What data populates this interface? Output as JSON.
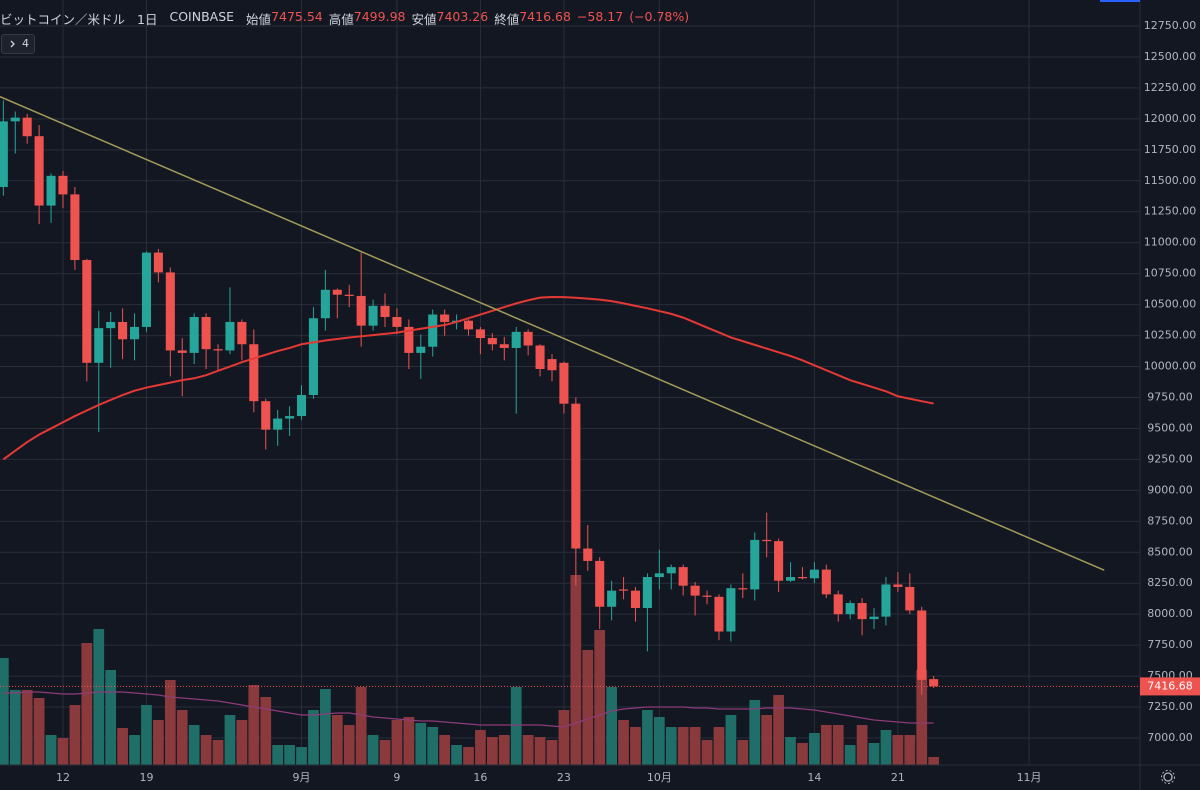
{
  "header": {
    "symbol": "ビットコイン／米ドル",
    "interval": "1日",
    "exchange": "COINBASE",
    "open_label": "始値",
    "open": "7475.54",
    "high_label": "高値",
    "high": "7499.98",
    "low_label": "安値",
    "low": "7403.26",
    "close_label": "終値",
    "close": "7416.68",
    "change": "−58.17",
    "change_percent": "(−0.78%)",
    "indicator_badge": "4"
  },
  "chart_data": {
    "type": "candlestick",
    "up_color": "#26a69a",
    "down_color": "#ef5350",
    "volume_up_color": "#1f6f68",
    "volume_down_color": "#8a3a3d",
    "ma_color": "#e53935",
    "volume_ma_color": "#8e3b7a",
    "trend_color": "#a39d58",
    "grid": true,
    "xlim": [
      -0.28,
      95.3
    ],
    "xticks": [
      {
        "value": 5,
        "label": "12"
      },
      {
        "value": 12,
        "label": "19"
      },
      {
        "value": 25,
        "label": "9月"
      },
      {
        "value": 33,
        "label": "9"
      },
      {
        "value": 40,
        "label": "16"
      },
      {
        "value": 47,
        "label": "23"
      },
      {
        "value": 55,
        "label": "10月"
      },
      {
        "value": 68,
        "label": "14"
      },
      {
        "value": 75,
        "label": "21"
      },
      {
        "value": 86,
        "label": "11月"
      }
    ],
    "ylim": [
      6782,
      12960
    ],
    "yticks": [
      {
        "value": 12750,
        "label": "12750.00"
      },
      {
        "value": 12500,
        "label": "12500.00"
      },
      {
        "value": 12250,
        "label": "12250.00"
      },
      {
        "value": 12000,
        "label": "12000.00"
      },
      {
        "value": 11750,
        "label": "11750.00"
      },
      {
        "value": 11500,
        "label": "11500.00"
      },
      {
        "value": 11250,
        "label": "11250.00"
      },
      {
        "value": 11000,
        "label": "11000.00"
      },
      {
        "value": 10750,
        "label": "10750.00"
      },
      {
        "value": 10500,
        "label": "10500.00"
      },
      {
        "value": 10250,
        "label": "10250.00"
      },
      {
        "value": 10000,
        "label": "10000.00"
      },
      {
        "value": 9750,
        "label": "9750.00"
      },
      {
        "value": 9500,
        "label": "9500.00"
      },
      {
        "value": 9250,
        "label": "9250.00"
      },
      {
        "value": 9000,
        "label": "9000.00"
      },
      {
        "value": 8750,
        "label": "8750.00"
      },
      {
        "value": 8500,
        "label": "8500.00"
      },
      {
        "value": 8250,
        "label": "8250.00"
      },
      {
        "value": 8000,
        "label": "8000.00"
      },
      {
        "value": 7750,
        "label": "7750.00"
      },
      {
        "value": 7500,
        "label": "7500.00"
      },
      {
        "value": 7250,
        "label": "7250.00"
      },
      {
        "value": 7000,
        "label": "7000.00"
      }
    ],
    "volume_ylim": [
      0,
      400
    ],
    "last_price": 7416.68,
    "open": [
      11450,
      11980,
      12010,
      11860,
      11300,
      11540,
      11390,
      10860,
      10030,
      10310,
      10360,
      10220,
      10320,
      10920,
      10760,
      10130,
      10110,
      10400,
      10140,
      10130,
      10360,
      10180,
      9720,
      9490,
      9580,
      9600,
      9770,
      10390,
      10620,
      10580,
      10570,
      10330,
      10490,
      10400,
      10320,
      10110,
      10160,
      10420,
      10360,
      10370,
      10300,
      10230,
      10180,
      10150,
      10280,
      10170,
      10060,
      10030,
      9700,
      8530,
      8430,
      8060,
      8200,
      8190,
      8050,
      8300,
      8330,
      8380,
      8230,
      8150,
      8140,
      7860,
      8210,
      8200,
      8600,
      8590,
      8270,
      8300,
      8290,
      8360,
      8160,
      8000,
      8090,
      7960,
      7980,
      8240,
      8220,
      8030,
      7475.54
    ],
    "high": [
      12150,
      12060,
      12040,
      11950,
      11560,
      11580,
      11450,
      10870,
      10450,
      10440,
      10470,
      10430,
      10930,
      10950,
      10800,
      10230,
      10430,
      10430,
      10180,
      10640,
      10380,
      10300,
      9740,
      9650,
      9680,
      9850,
      10480,
      10780,
      10630,
      10660,
      10920,
      10540,
      10590,
      10470,
      10380,
      10260,
      10460,
      10460,
      10420,
      10380,
      10320,
      10270,
      10240,
      10320,
      10300,
      10180,
      10100,
      10040,
      9750,
      8720,
      8460,
      8270,
      8300,
      8220,
      8330,
      8520,
      8400,
      8400,
      8260,
      8190,
      8160,
      8240,
      8330,
      8660,
      8820,
      8610,
      8420,
      8380,
      8420,
      8400,
      8190,
      8110,
      8130,
      8050,
      8300,
      8340,
      8330,
      8060,
      7499.98
    ],
    "low": [
      11380,
      11720,
      11800,
      11150,
      11160,
      11280,
      10780,
      9880,
      9470,
      9990,
      10060,
      10050,
      10280,
      10680,
      9920,
      9760,
      10020,
      9980,
      9960,
      10100,
      10050,
      9630,
      9330,
      9360,
      9440,
      9570,
      9740,
      10290,
      10390,
      10480,
      10160,
      10290,
      10320,
      10260,
      9980,
      9900,
      10080,
      10250,
      10300,
      10250,
      10100,
      10130,
      10050,
      9620,
      10090,
      9920,
      9880,
      9620,
      8230,
      8350,
      7880,
      7950,
      8120,
      7940,
      7700,
      8200,
      8200,
      8150,
      7990,
      8080,
      7790,
      7780,
      8130,
      8110,
      8460,
      8180,
      8260,
      8280,
      8250,
      8130,
      7940,
      7960,
      7830,
      7880,
      7910,
      8180,
      8000,
      7350,
      7403.26
    ],
    "close": [
      11980,
      12010,
      11860,
      11300,
      11540,
      11390,
      10860,
      10030,
      10310,
      10360,
      10220,
      10320,
      10920,
      10760,
      10130,
      10110,
      10400,
      10140,
      10130,
      10360,
      10180,
      9720,
      9490,
      9580,
      9600,
      9770,
      10390,
      10620,
      10580,
      10570,
      10330,
      10490,
      10400,
      10320,
      10110,
      10160,
      10420,
      10360,
      10370,
      10300,
      10230,
      10180,
      10150,
      10280,
      10170,
      9980,
      9970,
      9700,
      8530,
      8430,
      8060,
      8190,
      8190,
      8050,
      8300,
      8330,
      8380,
      8230,
      8150,
      8140,
      7860,
      8210,
      8200,
      8600,
      8590,
      8270,
      8300,
      8290,
      8360,
      8160,
      8000,
      8090,
      7960,
      7980,
      8240,
      8220,
      8030,
      7470,
      7416.68
    ],
    "volume": [
      107,
      75,
      75,
      67,
      30,
      27,
      60,
      122,
      136,
      95,
      37,
      30,
      60,
      45,
      85,
      55,
      40,
      30,
      25,
      50,
      45,
      80,
      68,
      20,
      20,
      18,
      55,
      76,
      50,
      40,
      78,
      30,
      25,
      45,
      48,
      42,
      38,
      30,
      20,
      18,
      35,
      28,
      30,
      78,
      30,
      28,
      25,
      55,
      190,
      115,
      135,
      78,
      45,
      38,
      55,
      48,
      38,
      38,
      38,
      25,
      38,
      50,
      25,
      65,
      50,
      70,
      28,
      22,
      32,
      40,
      40,
      20,
      40,
      22,
      35,
      30,
      30,
      95,
      8
    ],
    "ma": [
      9250,
      9320,
      9390,
      9450,
      9500,
      9550,
      9600,
      9645,
      9690,
      9730,
      9770,
      9805,
      9830,
      9850,
      9870,
      9890,
      9905,
      9930,
      9965,
      10000,
      10035,
      10065,
      10095,
      10125,
      10150,
      10180,
      10195,
      10210,
      10222,
      10234,
      10244,
      10254,
      10264,
      10274,
      10290,
      10305,
      10320,
      10335,
      10360,
      10390,
      10420,
      10450,
      10480,
      10510,
      10535,
      10556,
      10562,
      10560,
      10555,
      10548,
      10540,
      10528,
      10510,
      10490,
      10470,
      10448,
      10425,
      10395,
      10355,
      10315,
      10275,
      10235,
      10205,
      10175,
      10145,
      10115,
      10085,
      10050,
      10010,
      9970,
      9930,
      9890,
      9860,
      9830,
      9800,
      9760,
      9740,
      9720,
      9701
    ],
    "volume_ma": [
      72,
      72,
      73,
      73,
      72,
      71,
      71,
      72,
      73,
      73,
      73,
      72,
      71,
      70,
      68,
      67,
      66,
      65,
      64,
      62,
      60,
      58,
      56,
      54,
      52,
      50,
      50,
      51,
      52,
      52,
      50,
      48,
      47,
      46,
      45,
      44,
      44,
      43,
      42,
      41,
      40,
      40,
      40,
      40,
      40,
      40,
      39,
      38,
      42,
      46,
      50,
      54,
      56,
      57,
      58,
      58,
      58,
      58,
      57,
      57,
      56,
      56,
      56,
      56,
      57,
      57,
      57,
      56,
      55,
      53,
      51,
      49,
      47,
      45,
      44,
      43,
      42,
      42,
      42
    ],
    "trend_line": [
      [
        -0.3,
        12180
      ],
      [
        92.3,
        8355
      ]
    ]
  }
}
